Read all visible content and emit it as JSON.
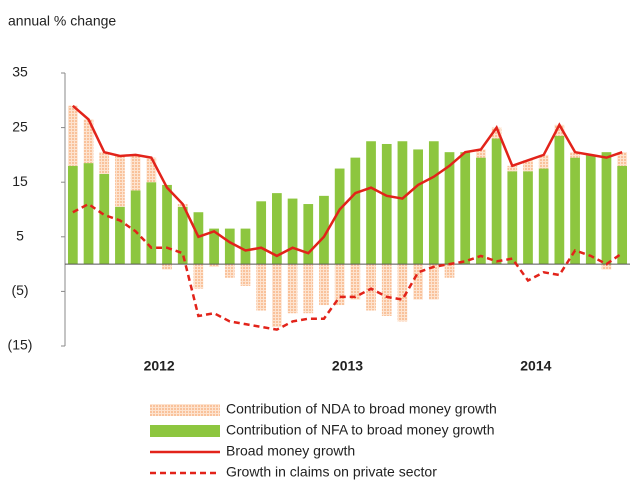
{
  "chart_data": {
    "type": "bar_line",
    "y_axis_label": "annual % change",
    "categories": [
      null,
      null,
      null,
      null,
      null,
      "2012",
      null,
      null,
      null,
      null,
      null,
      null,
      null,
      null,
      null,
      null,
      null,
      "2013",
      null,
      null,
      null,
      null,
      null,
      null,
      null,
      null,
      null,
      null,
      null,
      "2014",
      null,
      null,
      null,
      null,
      null,
      null
    ],
    "ylim": [
      -15,
      35
    ],
    "yticks": [
      -15,
      -5,
      5,
      15,
      25,
      35
    ],
    "ytick_labels_note": null,
    "series": [
      {
        "name": "Contribution of NDA to broad money growth",
        "kind": "bar",
        "color": "#f9c29b",
        "values": [
          11,
          8,
          4,
          9.3,
          6.5,
          4.5,
          -1,
          0.5,
          -4.5,
          -0.5,
          -2.5,
          -4,
          -8.5,
          -11.5,
          -9,
          -9,
          -7.5,
          -7.5,
          -6.5,
          -8.5,
          -9.5,
          -10.5,
          -6.5,
          -6.5,
          -2.5,
          0,
          1.5,
          2,
          1,
          2,
          2.5,
          2,
          1,
          0,
          -1,
          2.5
        ]
      },
      {
        "name": "Contribution of NFA to broad money growth",
        "kind": "bar",
        "color": "#8dc63f",
        "values": [
          18,
          18.5,
          16.5,
          10.5,
          13.5,
          15,
          14.5,
          10.5,
          9.5,
          6.5,
          6.5,
          6.5,
          11.5,
          13,
          12,
          11,
          12.5,
          17.5,
          19.5,
          22.5,
          22,
          22.5,
          21,
          22.5,
          20.5,
          20.5,
          19.5,
          23,
          17,
          17,
          17.5,
          23.5,
          19.5,
          20,
          20.5,
          18
        ]
      },
      {
        "name": "Broad money growth",
        "kind": "line",
        "color": "#e2231a",
        "dash": false,
        "values": [
          29,
          26.5,
          20.5,
          19.8,
          20,
          19.5,
          14,
          11,
          5,
          6,
          4,
          2.5,
          3,
          1.5,
          3,
          2,
          5,
          10,
          13,
          14,
          12.5,
          12,
          14.5,
          16,
          18,
          20.5,
          21,
          25,
          18,
          19,
          20,
          25.5,
          20.5,
          20,
          19.5,
          20.5
        ]
      },
      {
        "name": "Growth in claims on private sector",
        "kind": "line",
        "color": "#e2231a",
        "dash": true,
        "values": [
          9.5,
          11,
          9,
          8,
          6,
          3,
          3,
          2,
          -9.5,
          -9,
          -10.5,
          -11,
          -11.5,
          -12,
          -10.5,
          -10,
          -10,
          -6,
          -6,
          -4.5,
          -6,
          -6.5,
          -1.5,
          -0.5,
          0,
          0.5,
          1.5,
          0.5,
          1,
          -3,
          -1.5,
          -2,
          2.5,
          1.5,
          0,
          2
        ]
      }
    ]
  }
}
